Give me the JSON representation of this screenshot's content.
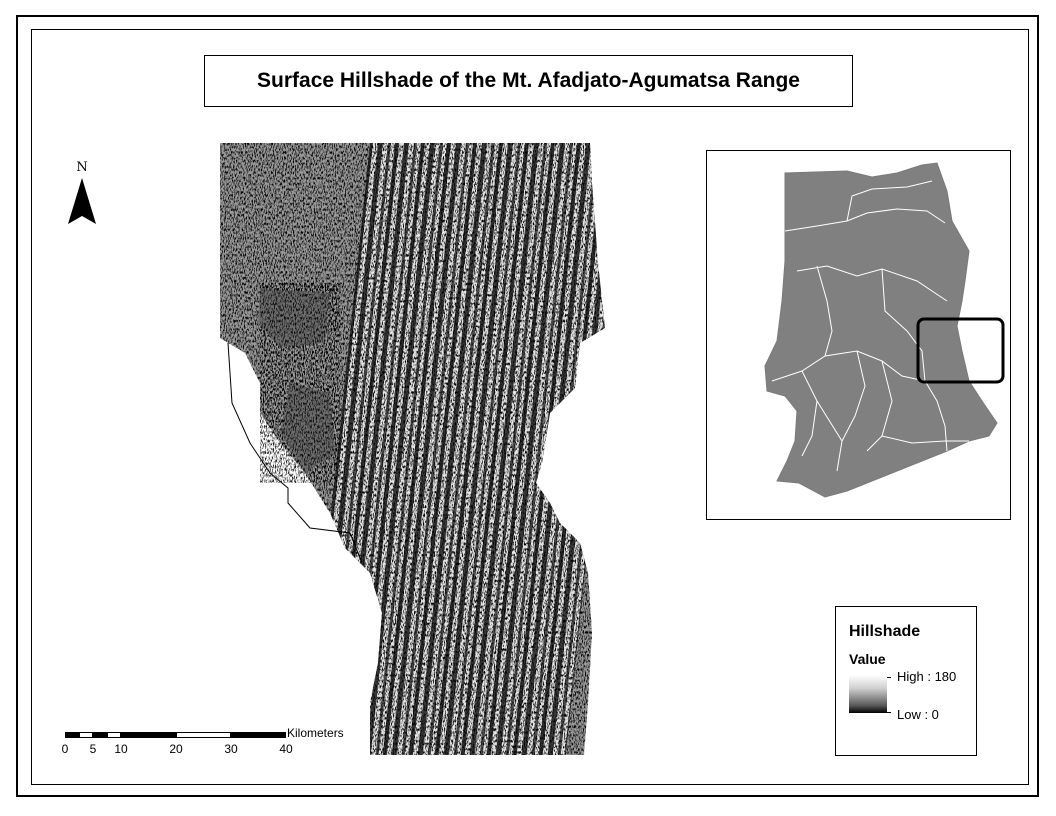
{
  "title": "Surface Hillshade of the Mt. Afadjato-Agumatsa Range",
  "north_arrow": {
    "label": "N",
    "icon": "north-arrow-icon"
  },
  "legend": {
    "title": "Hillshade",
    "subtitle": "Value",
    "high_label": "High : 180",
    "low_label": "Low : 0",
    "high_value": 180,
    "low_value": 0
  },
  "scale_bar": {
    "units": "Kilometers",
    "ticks": [
      "0",
      "5",
      "10",
      "20",
      "30",
      "40"
    ]
  },
  "inset_map": {
    "fill_color": "#808080",
    "boundary_color": "#ffffff",
    "highlight_box_color": "#000000"
  },
  "colors": {
    "frame": "#000000",
    "background": "#ffffff"
  }
}
